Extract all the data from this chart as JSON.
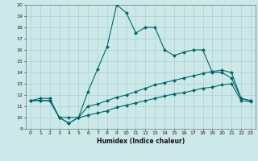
{
  "title": "",
  "xlabel": "Humidex (Indice chaleur)",
  "ylabel": "",
  "xlim": [
    -0.5,
    23.5
  ],
  "ylim": [
    9,
    20
  ],
  "xticks": [
    0,
    1,
    2,
    3,
    4,
    5,
    6,
    7,
    8,
    9,
    10,
    11,
    12,
    13,
    14,
    15,
    16,
    17,
    18,
    19,
    20,
    21,
    22,
    23
  ],
  "yticks": [
    9,
    10,
    11,
    12,
    13,
    14,
    15,
    16,
    17,
    18,
    19,
    20
  ],
  "bg_color": "#cce8e8",
  "line_color": "#006868",
  "grid_color": "#aad0d0",
  "lines": [
    {
      "x": [
        0,
        1,
        2,
        3,
        4,
        5,
        6,
        7,
        8,
        9,
        10,
        11,
        12,
        13,
        14,
        15,
        16,
        17,
        18,
        19,
        20,
        21,
        22,
        23
      ],
      "y": [
        11.5,
        11.7,
        11.7,
        10.0,
        10.0,
        10.0,
        12.3,
        14.3,
        16.3,
        20.0,
        19.3,
        17.5,
        18.0,
        18.0,
        16.0,
        15.5,
        15.8,
        16.0,
        16.0,
        14.0,
        14.0,
        13.5,
        11.7,
        11.5
      ],
      "marker": "D",
      "markersize": 2.0,
      "linewidth": 0.8
    },
    {
      "x": [
        0,
        1,
        2,
        3,
        4,
        5,
        6,
        7,
        8,
        9,
        10,
        11,
        12,
        13,
        14,
        15,
        16,
        17,
        18,
        19,
        20,
        21,
        22,
        23
      ],
      "y": [
        11.5,
        11.5,
        11.5,
        10.0,
        9.5,
        10.0,
        11.0,
        11.2,
        11.5,
        11.8,
        12.0,
        12.3,
        12.6,
        12.9,
        13.1,
        13.3,
        13.5,
        13.7,
        13.9,
        14.1,
        14.2,
        14.0,
        11.7,
        11.5
      ],
      "marker": "D",
      "markersize": 2.0,
      "linewidth": 0.8
    },
    {
      "x": [
        0,
        1,
        2,
        3,
        4,
        5,
        6,
        7,
        8,
        9,
        10,
        11,
        12,
        13,
        14,
        15,
        16,
        17,
        18,
        19,
        20,
        21,
        22,
        23
      ],
      "y": [
        11.5,
        11.5,
        11.5,
        10.0,
        9.5,
        10.0,
        10.2,
        10.4,
        10.6,
        10.9,
        11.1,
        11.3,
        11.5,
        11.7,
        11.9,
        12.1,
        12.2,
        12.4,
        12.6,
        12.7,
        12.9,
        13.0,
        11.5,
        11.4
      ],
      "marker": "D",
      "markersize": 2.0,
      "linewidth": 0.8
    }
  ]
}
